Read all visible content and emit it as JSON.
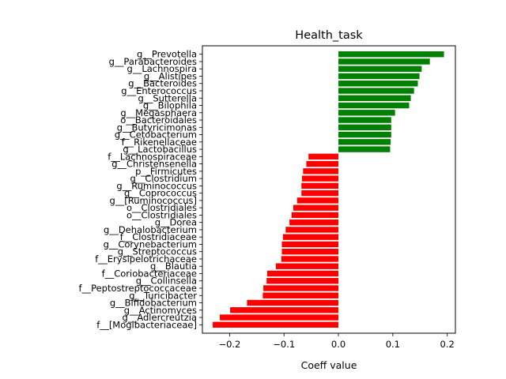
{
  "chart_data": {
    "type": "bar",
    "orientation": "horizontal",
    "title": "Health_task",
    "xlabel": "Coeff value",
    "ylabel": "",
    "xlim": [
      -0.25,
      0.215
    ],
    "xticks": [
      -0.2,
      -0.1,
      0.0,
      0.1,
      0.2
    ],
    "xtick_labels": [
      "−0.2",
      "−0.1",
      "0.0",
      "0.1",
      "0.2"
    ],
    "grid": false,
    "legend": "none",
    "positive_color": "#008000",
    "negative_color": "#ff0000",
    "categories": [
      "g__Prevotella",
      "g__Parabacteroides",
      "g__Lachnospira",
      "g__Alistipes",
      "g__Bacteroides",
      "g__Enterococcus",
      "g__Sutterella",
      "g__Bilophila",
      "g__Megasphaera",
      "o__Bacteroidales",
      "g__Butyricimonas",
      "g__Cetobacterium",
      "f__Rikenellaceae",
      "g__Lactobacillus",
      "f__Lachnospiraceae",
      "g__Christensenella",
      "p__Firmicutes",
      "g__Clostridium",
      "g__Ruminococcus",
      "g__Coprococcus",
      "g__[Ruminococcus]",
      "o__Clostridiales",
      "o__Clostridiales",
      "g__Dorea",
      "g__Dehalobacterium",
      "f__Clostridiaceae",
      "g__Corynebacterium",
      "g__Streptococcus",
      "f__Erysipelotrichaceae",
      "g__Blautia",
      "f__Coriobacteriaceae",
      "g__Collinsella",
      "f__Peptostreptococcaceae",
      "g__Turicibacter",
      "g__Bifidobacterium",
      "g__Actinomyces",
      "g__Adlercreutzia",
      "f__[Mogibacteriaceae]"
    ],
    "values": [
      0.194,
      0.168,
      0.153,
      0.149,
      0.146,
      0.139,
      0.133,
      0.13,
      0.104,
      0.097,
      0.097,
      0.097,
      0.096,
      0.095,
      -0.055,
      -0.059,
      -0.065,
      -0.067,
      -0.068,
      -0.068,
      -0.076,
      -0.083,
      -0.086,
      -0.09,
      -0.097,
      -0.102,
      -0.104,
      -0.104,
      -0.105,
      -0.115,
      -0.131,
      -0.132,
      -0.138,
      -0.139,
      -0.168,
      -0.199,
      -0.218,
      -0.231
    ]
  }
}
